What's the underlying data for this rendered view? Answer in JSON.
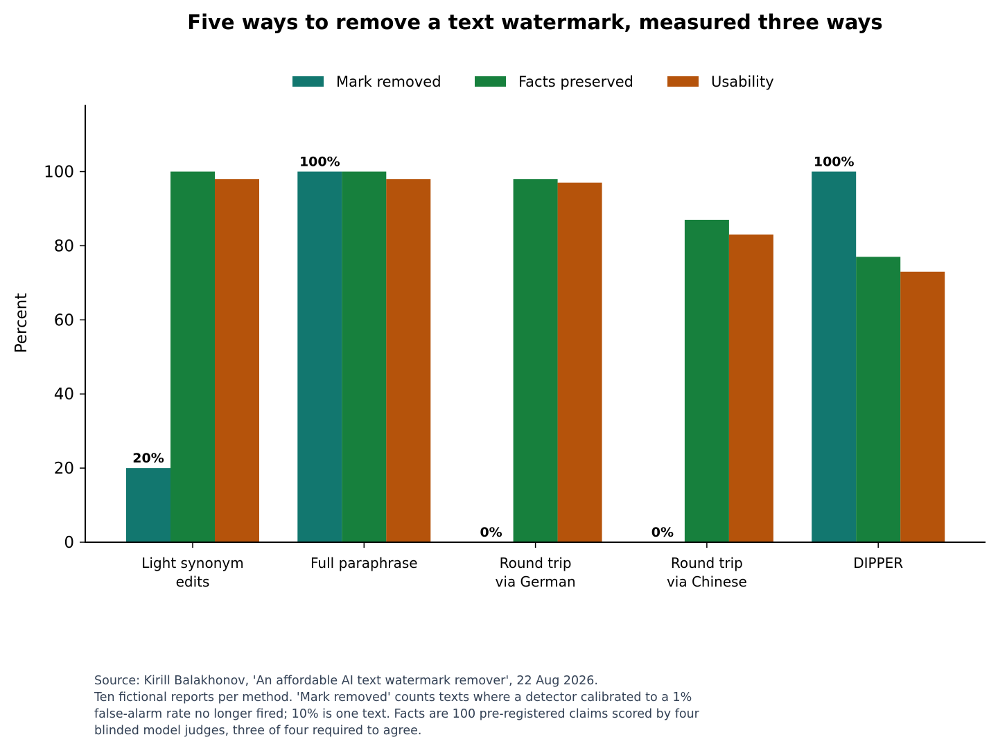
{
  "chart_data": {
    "type": "bar",
    "title": "Five ways to remove a text watermark, measured three ways",
    "ylabel": "Percent",
    "xlabel": "",
    "ylim": [
      0,
      118
    ],
    "yticks": [
      0,
      20,
      40,
      60,
      80,
      100
    ],
    "ytick_labels": [
      "0",
      "20",
      "40",
      "60",
      "80",
      "100"
    ],
    "grid": false,
    "legend_position": "top-center",
    "categories": [
      [
        "Light synonym",
        "edits"
      ],
      [
        "Full paraphrase"
      ],
      [
        "Round trip",
        "via German"
      ],
      [
        "Round trip",
        "via Chinese"
      ],
      [
        "DIPPER"
      ]
    ],
    "series": [
      {
        "name": "Mark removed",
        "color": "#12776f",
        "values": [
          20,
          100,
          0,
          0,
          100
        ]
      },
      {
        "name": "Facts preserved",
        "color": "#17803d",
        "values": [
          100,
          100,
          98,
          87,
          77
        ]
      },
      {
        "name": "Usability",
        "color": "#b5530b",
        "values": [
          98,
          98,
          97,
          83,
          73
        ]
      }
    ],
    "bar_labels": {
      "series": "Mark removed",
      "text": [
        "20%",
        "100%",
        "0%",
        "0%",
        "100%"
      ]
    }
  },
  "source_note": {
    "lines": [
      "Source: Kirill Balakhonov, 'An affordable AI text watermark remover', 22 Aug 2026.",
      "Ten fictional reports per method. 'Mark removed' counts texts where a detector calibrated to a 1%",
      "false-alarm rate no longer fired; 10% is one text. Facts are 100 pre-registered claims scored by four",
      "blinded model judges, three of four required to agree."
    ]
  }
}
